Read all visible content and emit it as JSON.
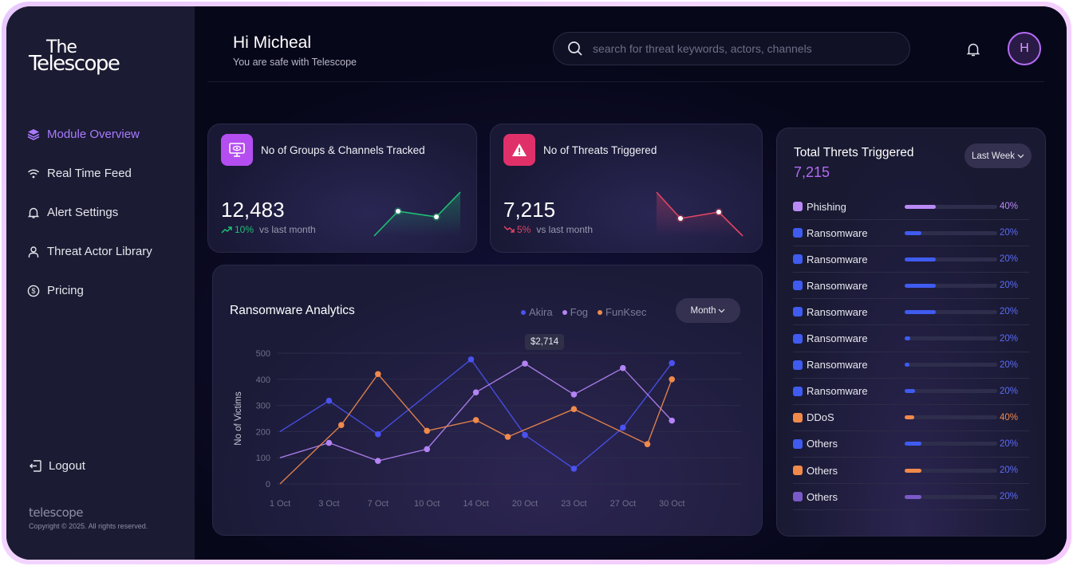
{
  "brand": {
    "line1": "The",
    "line2": "Telescope",
    "footer_brand": "telescope",
    "copyright": "Copyright © 2025. All rights reserved."
  },
  "sidebar": {
    "items": [
      {
        "label": "Module Overview",
        "icon": "layers-icon",
        "active": true
      },
      {
        "label": "Real Time Feed",
        "icon": "wifi-icon",
        "active": false
      },
      {
        "label": "Alert Settings",
        "icon": "bell-icon",
        "active": false
      },
      {
        "label": "Threat Actor Library",
        "icon": "user-icon",
        "active": false
      },
      {
        "label": "Pricing",
        "icon": "dollar-icon",
        "active": false
      }
    ],
    "logout_label": "Logout"
  },
  "header": {
    "greeting": "Hi Micheal",
    "subtitle": "You are safe with Telescope",
    "search_placeholder": "search for threat keywords, actors, channels",
    "avatar_initial": "H"
  },
  "stats": [
    {
      "title": "No of Groups & Channels Tracked",
      "value": "12,483",
      "change": "10%",
      "direction": "up",
      "period": "vs last month",
      "icon": "monitor-eye-icon",
      "accent": "#b44ef0",
      "trend_color": "#1fbf75"
    },
    {
      "title": "No of Threats Triggered",
      "value": "7,215",
      "change": "5%",
      "direction": "down",
      "period": "vs last month",
      "icon": "warning-icon",
      "accent": "#e0306a",
      "trend_color": "#e04462"
    }
  ],
  "analytics": {
    "title": "Ransomware Analytics",
    "period_label": "Month",
    "tooltip": "$2,714"
  },
  "chart_data": {
    "type": "line",
    "ylabel": "No of Victims",
    "xlabel": "",
    "ylim": [
      0,
      500
    ],
    "yticks": [
      "0",
      "100",
      "200",
      "300",
      "400",
      "500"
    ],
    "categories": [
      "1 Oct",
      "3 Oct",
      "7 Oct",
      "10 Oct",
      "14 Oct",
      "20 Oct",
      "23 Oct",
      "27 Oct",
      "30 Oct"
    ],
    "grid": true,
    "legend": "top-right",
    "series": [
      {
        "name": "Akira",
        "color": "#4a52f0",
        "x": [
          0,
          1,
          2,
          3.9,
          5,
          6,
          7,
          8
        ],
        "values": [
          200,
          318,
          190,
          476,
          187,
          58,
          215,
          462
        ]
      },
      {
        "name": "Fog",
        "color": "#b483f5",
        "x": [
          0,
          1,
          2,
          3,
          4,
          5,
          6,
          7,
          8
        ],
        "values": [
          100,
          157,
          88,
          133,
          350,
          460,
          342,
          443,
          242
        ]
      },
      {
        "name": "FunKsec",
        "color": "#f08a4b",
        "x": [
          0,
          1.25,
          2,
          3,
          4,
          4.65,
          6,
          7.5,
          8
        ],
        "values": [
          0,
          225,
          420,
          203,
          244,
          180,
          286,
          152,
          400
        ]
      }
    ]
  },
  "threats": {
    "title": "Total Threts Triggered",
    "total": "7,215",
    "period_label": "Last Week",
    "rows": [
      {
        "label": "Phishing",
        "pct": "40%",
        "fill": 0.34,
        "color": "#b98af5",
        "pct_color": "#b98af5"
      },
      {
        "label": "Ransomware",
        "pct": "20%",
        "fill": 0.18,
        "color": "#3f5bf0",
        "pct_color": "#5a6cf5"
      },
      {
        "label": "Ransomware",
        "pct": "20%",
        "fill": 0.34,
        "color": "#3f5bf0",
        "pct_color": "#5a6cf5"
      },
      {
        "label": "Ransomware",
        "pct": "20%",
        "fill": 0.34,
        "color": "#3f5bf0",
        "pct_color": "#5a6cf5"
      },
      {
        "label": "Ransomware",
        "pct": "20%",
        "fill": 0.34,
        "color": "#3f5bf0",
        "pct_color": "#5a6cf5"
      },
      {
        "label": "Ransomware",
        "pct": "20%",
        "fill": 0.06,
        "color": "#3f5bf0",
        "pct_color": "#5a6cf5"
      },
      {
        "label": "Ransomware",
        "pct": "20%",
        "fill": 0.05,
        "color": "#3f5bf0",
        "pct_color": "#5a6cf5"
      },
      {
        "label": "Ransomware",
        "pct": "20%",
        "fill": 0.11,
        "color": "#3f5bf0",
        "pct_color": "#5a6cf5"
      },
      {
        "label": "DDoS",
        "pct": "40%",
        "fill": 0.1,
        "color": "#f08a4b",
        "pct_color": "#f08a4b"
      },
      {
        "label": "Others",
        "pct": "20%",
        "fill": 0.18,
        "color": "#3f5bf0",
        "pct_color": "#5a6cf5"
      },
      {
        "label": "Others",
        "pct": "20%",
        "fill": 0.18,
        "color": "#f08a4b",
        "pct_color": "#5a6cf5"
      },
      {
        "label": "Others",
        "pct": "20%",
        "fill": 0.18,
        "color": "#7a5ac8",
        "pct_color": "#5a6cf5"
      }
    ]
  }
}
